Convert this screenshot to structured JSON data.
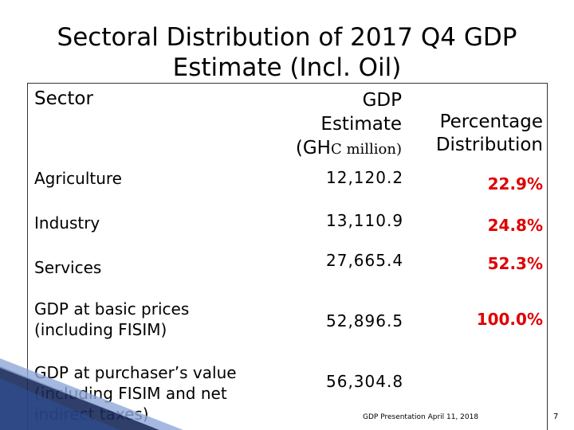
{
  "title_line1": "Sectoral Distribution of 2017 Q4 GDP",
  "title_line2": "Estimate (Incl. Oil)",
  "header": {
    "sector": "Sector",
    "gdp_line1": "GDP",
    "gdp_line2": "Estimate",
    "gdp_line3a": "(GH",
    "gdp_line3b": "C million)",
    "pct_line1": "Percentage",
    "pct_line2": "Distribution"
  },
  "rows": [
    {
      "label": "Agriculture",
      "value": "12,120.2",
      "pct": "22.9%"
    },
    {
      "label": "Industry",
      "value": "13,110.9",
      "pct": "24.8%"
    },
    {
      "label": "Services",
      "value": "27,665.4",
      "pct": "52.3%"
    },
    {
      "label_line1": "GDP at basic prices",
      "label_line2": "(including FISIM)",
      "value": "52,896.5",
      "pct": "100.0%"
    },
    {
      "label_line1": "GDP at purchaser’s value",
      "label_line2": "(including FISIM and net",
      "label_line3": "indirect taxes)",
      "value": "56,304.8"
    }
  ],
  "footer": "GDP Presentation April 11, 2018",
  "page_number": "7",
  "colors": {
    "percent": "#e00000",
    "decor_dark": "#1a2a5a",
    "decor_light": "#8fa8d8"
  }
}
